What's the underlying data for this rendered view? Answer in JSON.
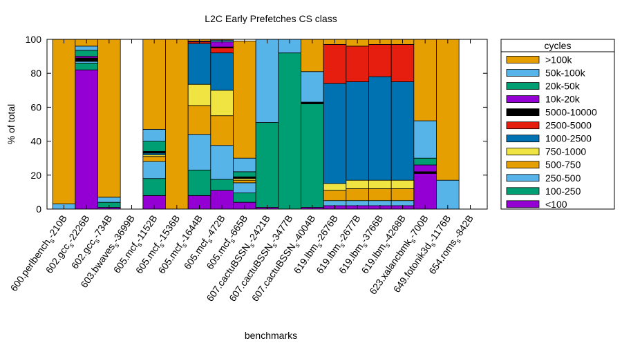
{
  "chart_data": {
    "type": "bar",
    "stacked": true,
    "title": "L2C Early Prefetches CS class",
    "xlabel": "benchmarks",
    "ylabel": "% of total",
    "ylim": [
      0,
      100
    ],
    "yticks": [
      0,
      20,
      40,
      60,
      80,
      100
    ],
    "grid": false,
    "legend_position": "right",
    "legend_title": "cycles",
    "categories": [
      "600.perlbench_s-210B",
      "602.gcc_s-2226B",
      "602.gcc_s-734B",
      "603.bwaves_s-3699B",
      "605.mcf_s-1152B",
      "605.mcf_s-1536B",
      "605.mcf_s-1644B",
      "605.mcf_s-472B",
      "605.mcf_s-665B",
      "607.cactuBSSN_s-2421B",
      "607.cactuBSSN_s-3477B",
      "607.cactuBSSN_s-4004B",
      "619.lbm_s-2676B",
      "619.lbm_s-2677B",
      "619.lbm_s-3766B",
      "619.lbm_s-4268B",
      "623.xalancbmk_s-700B",
      "649.fotonik3d_s-1176B",
      "654.roms_s-842B"
    ],
    "category_parts": [
      [
        "600.perlbench",
        "s",
        "-210B"
      ],
      [
        "602.gcc",
        "s",
        "-2226B"
      ],
      [
        "602.gcc",
        "s",
        "-734B"
      ],
      [
        "603.bwaves",
        "s",
        "-3699B"
      ],
      [
        "605.mcf",
        "s",
        "-1152B"
      ],
      [
        "605.mcf",
        "s",
        "-1536B"
      ],
      [
        "605.mcf",
        "s",
        "-1644B"
      ],
      [
        "605.mcf",
        "s",
        "-472B"
      ],
      [
        "605.mcf",
        "s",
        "-665B"
      ],
      [
        "607.cactuBSSN",
        "s",
        "-2421B"
      ],
      [
        "607.cactuBSSN",
        "s",
        "-3477B"
      ],
      [
        "607.cactuBSSN",
        "s",
        "-4004B"
      ],
      [
        "619.lbm",
        "s",
        "-2676B"
      ],
      [
        "619.lbm",
        "s",
        "-2677B"
      ],
      [
        "619.lbm",
        "s",
        "-3766B"
      ],
      [
        "619.lbm",
        "s",
        "-4268B"
      ],
      [
        "623.xalancbmk",
        "s",
        "-700B"
      ],
      [
        "649.fotonik3d",
        "s",
        "-1176B"
      ],
      [
        "654.roms",
        "s",
        "-842B"
      ]
    ],
    "series": [
      {
        "name": "<100",
        "color": "#9400d3",
        "values": [
          0,
          82,
          1,
          0,
          8,
          0,
          8,
          11,
          4,
          1,
          0,
          1,
          2,
          2,
          2,
          2,
          21,
          0,
          0
        ]
      },
      {
        "name": "100-250",
        "color": "#009e73",
        "values": [
          0,
          4,
          0,
          0,
          10,
          0,
          15,
          6.5,
          5.5,
          0,
          92,
          61,
          0,
          0,
          0,
          0,
          0,
          0,
          0
        ]
      },
      {
        "name": "250-500",
        "color": "#56b4e9",
        "values": [
          3,
          1,
          0,
          0,
          10,
          0,
          21,
          20,
          6,
          0,
          0,
          0,
          3,
          3,
          3,
          3,
          0,
          17,
          0
        ]
      },
      {
        "name": "500-750",
        "color": "#e69f00",
        "values": [
          0,
          0,
          0,
          0,
          3,
          0,
          17,
          17.5,
          1.5,
          0,
          0,
          0,
          6,
          7,
          7,
          7,
          0,
          0,
          0
        ]
      },
      {
        "name": "750-1000",
        "color": "#f0e442",
        "values": [
          0,
          0,
          0,
          0,
          1,
          0,
          12.5,
          15,
          1,
          0,
          0,
          0,
          4,
          5,
          5,
          5,
          0,
          0,
          0
        ]
      },
      {
        "name": "1000-2500",
        "color": "#0072b2",
        "values": [
          0,
          0,
          0,
          0,
          1,
          0,
          24,
          22,
          0,
          0,
          0,
          0,
          59,
          58,
          61,
          58,
          0,
          0,
          0
        ]
      },
      {
        "name": "2500-5000",
        "color": "#e51e10",
        "values": [
          0,
          0,
          0,
          0,
          0,
          0,
          1,
          3,
          0,
          0,
          0,
          0,
          23,
          21,
          19,
          22,
          0,
          0,
          0
        ]
      },
      {
        "name": "5000-10000",
        "color": "#000000",
        "values": [
          0,
          2,
          0,
          0,
          1,
          0,
          0,
          0.5,
          1,
          0,
          0,
          1,
          0,
          0,
          0,
          0,
          1,
          0,
          0
        ]
      },
      {
        "name": "10k-20k",
        "color": "#9400d3",
        "values": [
          0,
          1,
          0,
          0,
          0,
          0,
          0.5,
          3,
          0,
          0,
          0,
          0,
          0,
          0,
          0,
          0,
          4,
          0,
          0
        ]
      },
      {
        "name": "20k-50k",
        "color": "#009e73",
        "values": [
          0,
          3.5,
          3,
          0,
          6,
          0,
          0,
          0,
          3,
          50,
          0,
          0,
          0,
          0,
          0,
          0,
          4,
          0,
          0
        ]
      },
      {
        "name": "50k-100k",
        "color": "#56b4e9",
        "values": [
          0,
          2.5,
          3,
          0,
          7,
          0,
          0,
          1,
          8,
          49,
          8,
          18,
          0,
          0,
          0,
          0,
          22,
          0,
          0
        ]
      },
      {
        "name": ">100k",
        "color": "#e69f00",
        "values": [
          97,
          4,
          93,
          0,
          53,
          100,
          1,
          0.5,
          69,
          0,
          0,
          19,
          3,
          4,
          3,
          3,
          48,
          83,
          0
        ]
      }
    ]
  }
}
